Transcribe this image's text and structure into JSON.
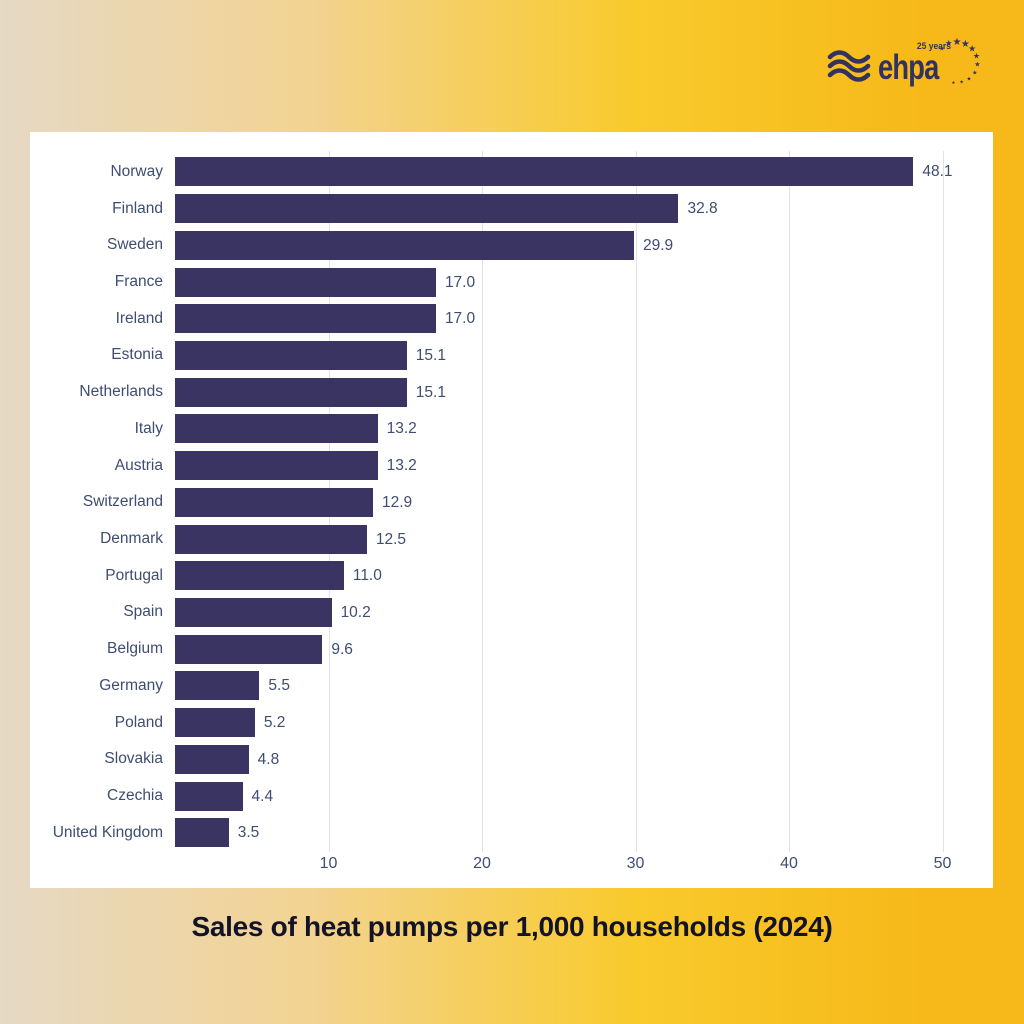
{
  "logo": {
    "brand": "ehpa",
    "anniversary": "25 years",
    "color": "#32325f"
  },
  "background": {
    "gradient_stops": [
      "#e6d9c5",
      "#f2d392",
      "#f9ca2c",
      "#f6b919"
    ]
  },
  "card": {
    "background": "#ffffff"
  },
  "chart_data": {
    "type": "bar",
    "orientation": "horizontal",
    "title": "Sales of heat pumps per 1,000 households (2024)",
    "categories": [
      "Norway",
      "Finland",
      "Sweden",
      "France",
      "Ireland",
      "Estonia",
      "Netherlands",
      "Italy",
      "Austria",
      "Switzerland",
      "Denmark",
      "Portugal",
      "Spain",
      "Belgium",
      "Germany",
      "Poland",
      "Slovakia",
      "Czechia",
      "United Kingdom"
    ],
    "values": [
      48.1,
      32.8,
      29.9,
      17.0,
      17.0,
      15.1,
      15.1,
      13.2,
      13.2,
      12.9,
      12.5,
      11.0,
      10.2,
      9.6,
      5.5,
      5.2,
      4.8,
      4.4,
      3.5
    ],
    "x_ticks": [
      10,
      20,
      30,
      40,
      50
    ],
    "xlim": [
      0,
      50
    ],
    "grid": true,
    "legend": "none",
    "value_label_decimals": 1,
    "bar_color": "#3a3462",
    "label_color": "#3e4d71",
    "tick_color": "#3e4d71",
    "grid_color": "#e2e2e6",
    "title_color": "#131327"
  }
}
